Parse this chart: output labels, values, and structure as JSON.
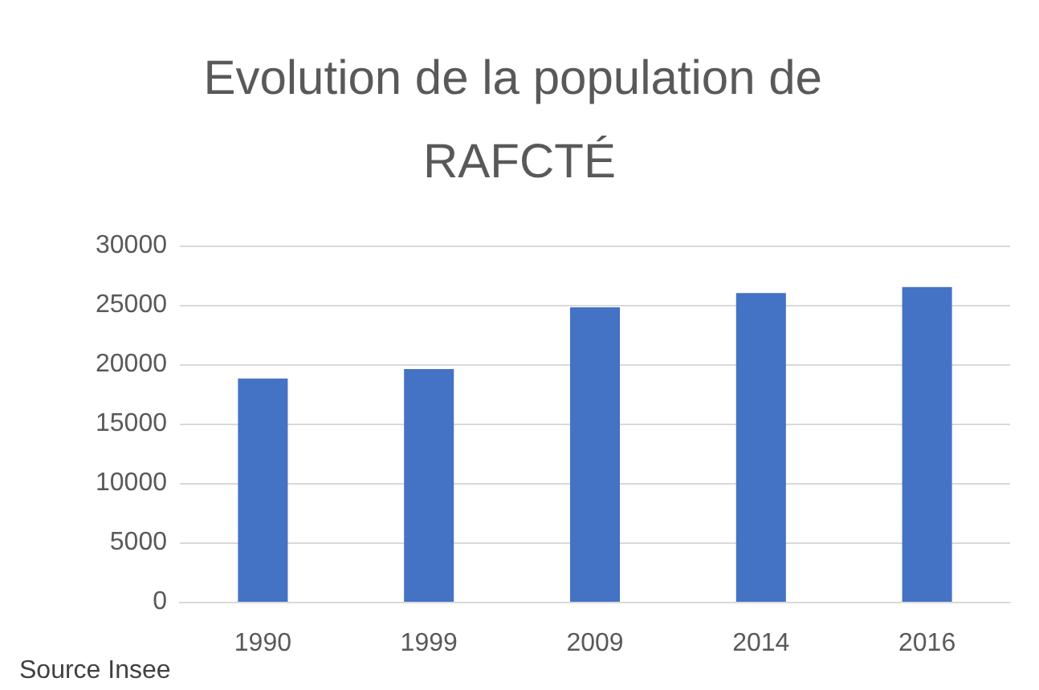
{
  "chart_data": {
    "type": "bar",
    "title": "Evolution de la population de RAFCTÉ",
    "categories": [
      "1990",
      "1999",
      "2009",
      "2014",
      "2016"
    ],
    "values": [
      18800,
      19600,
      24800,
      26000,
      26500
    ],
    "color": "#4472c4",
    "ylim": [
      0,
      30000
    ],
    "yticks": [
      0,
      5000,
      10000,
      15000,
      20000,
      25000,
      30000
    ],
    "grid": "y",
    "annotations": [
      "Source Insee"
    ]
  }
}
